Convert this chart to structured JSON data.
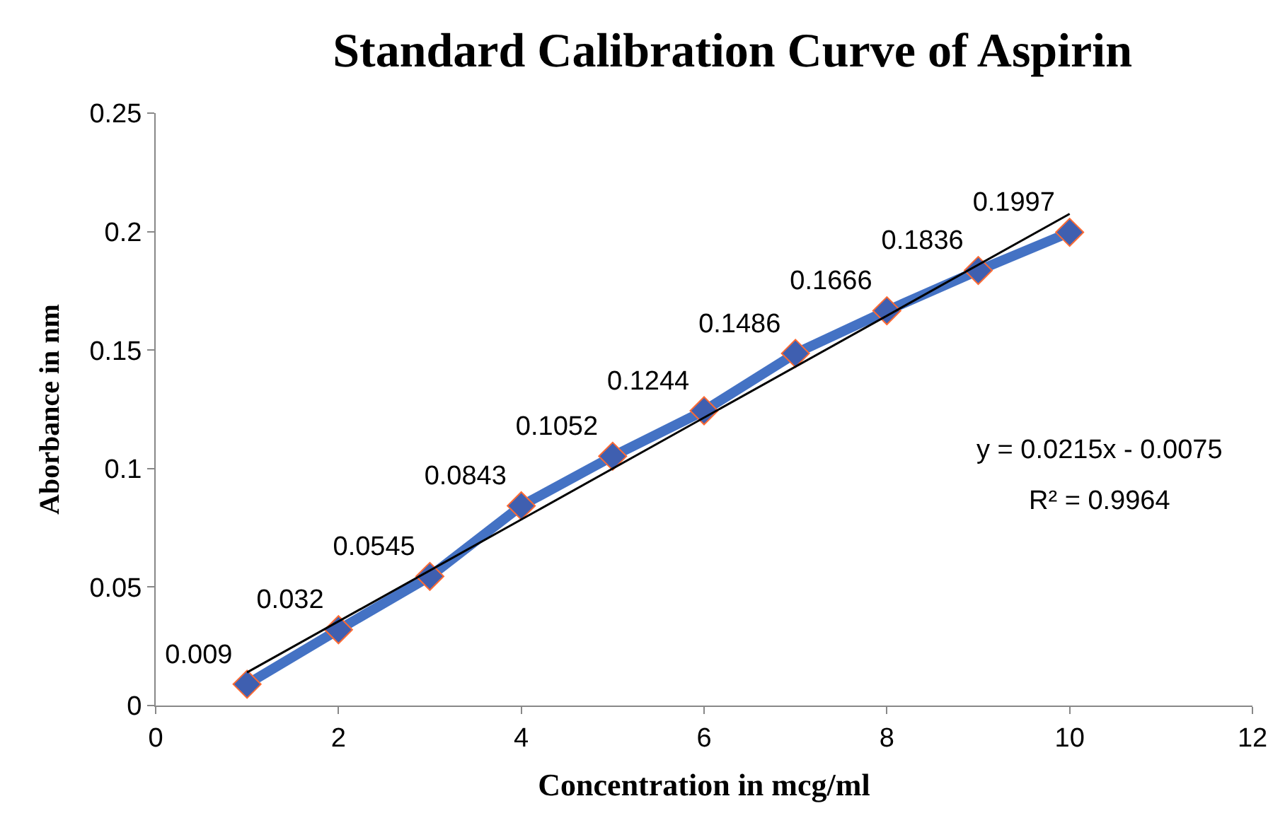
{
  "chart_data": {
    "type": "line",
    "title": "Standard Calibration Curve of Aspirin",
    "xlabel": "Concentration in mcg/ml",
    "ylabel": "Aborbance in nm",
    "x": [
      1,
      2,
      3,
      4,
      5,
      6,
      7,
      8,
      9,
      10
    ],
    "series": [
      {
        "color": "#4472c4",
        "marker": "diamond",
        "values": [
          0.009,
          0.032,
          0.0545,
          0.0843,
          0.1052,
          0.1244,
          0.1486,
          0.1666,
          0.1836,
          0.1997
        ],
        "value_labels": [
          "0.009",
          "0.032",
          "0.0545",
          "0.0843",
          "0.1052",
          "0.1244",
          "0.1486",
          "0.1666",
          "0.1836",
          "0.1997"
        ]
      },
      {
        "type": "line",
        "color": "#000000",
        "marker": "none",
        "x": [
          1,
          10
        ],
        "values": [
          0.014,
          0.2075
        ]
      }
    ],
    "annotations": [
      "y = 0.0215x - 0.0075",
      "R² = 0.9964"
    ],
    "xlim": [
      0,
      12
    ],
    "xticks": [
      0,
      2,
      4,
      6,
      8,
      10,
      12
    ],
    "ylim": [
      0,
      0.25
    ],
    "yticks": [
      0,
      0.05,
      0.1,
      0.15,
      0.2,
      0.25
    ],
    "legend": false,
    "line_style": "solid"
  }
}
